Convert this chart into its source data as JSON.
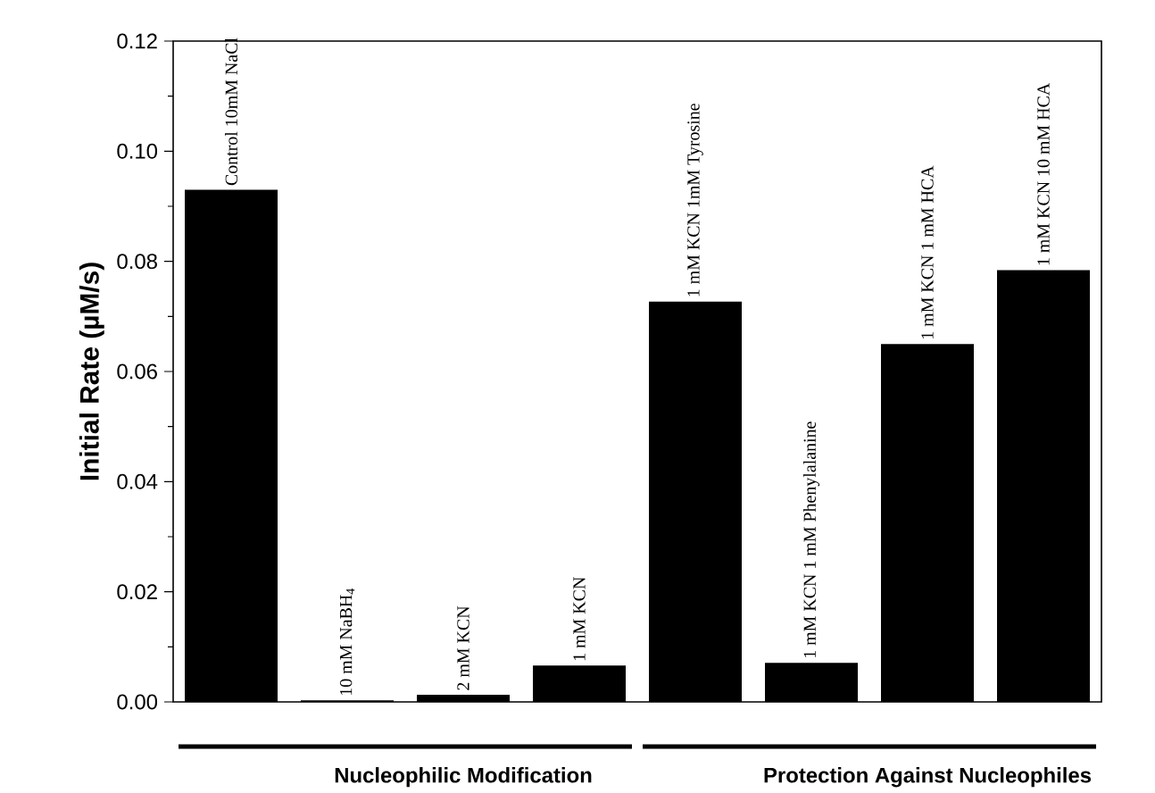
{
  "chart_data": {
    "type": "bar",
    "ylabel": "Initial Rate (µM/s)",
    "categories": [
      "Control 10mM NaCl",
      "10 mM NaBH$_{4}$",
      "2 mM KCN",
      "1 mM KCN",
      "1 mM KCN 1mM Tyrosine",
      "1 mM KCN 1 mM Phenylalanine",
      "1 mM KCN 1 mM HCA",
      "1 mM KCN 10 mM HCA"
    ],
    "values": [
      0.093,
      0.0003,
      0.0013,
      0.0066,
      0.0727,
      0.0071,
      0.065,
      0.0784
    ],
    "color": "#000000",
    "ylim": [
      0,
      0.12
    ],
    "yticks": [
      {
        "value": 0,
        "label": "0.00"
      },
      {
        "value": 0.02,
        "label": "0.02"
      },
      {
        "value": 0.04,
        "label": "0.04"
      },
      {
        "value": 0.06,
        "label": "0.06"
      },
      {
        "value": 0.08,
        "label": "0.08"
      },
      {
        "value": 0.1,
        "label": "0.10"
      },
      {
        "value": 0.12,
        "label": "0.12"
      }
    ],
    "tick_labels": "y",
    "annotations": [
      "Nucleophilic Modification",
      "Protection Against Nucleophiles"
    ]
  }
}
